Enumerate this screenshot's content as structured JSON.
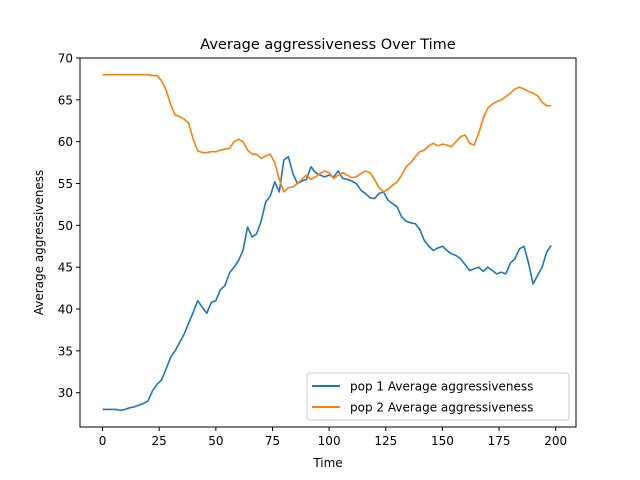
{
  "chart_data": {
    "type": "line",
    "title": "Average aggressiveness Over Time",
    "xlabel": "Time",
    "ylabel": "Average aggressiveness",
    "xlim": [
      -9.95,
      208.95
    ],
    "ylim": [
      25.9,
      70.0
    ],
    "xticks": [
      0,
      25,
      50,
      75,
      100,
      125,
      150,
      175,
      200
    ],
    "yticks": [
      30,
      35,
      40,
      45,
      50,
      55,
      60,
      65,
      70
    ],
    "grid": false,
    "legend_position": "lower-right",
    "series": [
      {
        "name": "pop 1 Average aggressiveness",
        "color": "#1f77b4",
        "x": [
          0,
          2,
          4,
          6,
          8,
          10,
          12,
          14,
          16,
          18,
          20,
          22,
          24,
          26,
          28,
          30,
          32,
          34,
          36,
          38,
          40,
          42,
          44,
          46,
          48,
          50,
          52,
          54,
          56,
          58,
          60,
          62,
          64,
          66,
          68,
          70,
          72,
          74,
          76,
          78,
          80,
          82,
          84,
          86,
          88,
          90,
          92,
          94,
          96,
          98,
          100,
          102,
          104,
          106,
          108,
          110,
          112,
          114,
          116,
          118,
          120,
          122,
          124,
          126,
          128,
          130,
          132,
          134,
          136,
          138,
          140,
          142,
          144,
          146,
          148,
          150,
          152,
          154,
          156,
          158,
          160,
          162,
          164,
          166,
          168,
          170,
          172,
          174,
          176,
          178,
          180,
          182,
          184,
          186,
          188,
          190,
          192,
          194,
          196,
          198
        ],
        "values": [
          28.0,
          28.0,
          28.0,
          28.0,
          27.9,
          28.0,
          28.2,
          28.3,
          28.5,
          28.7,
          29.0,
          30.2,
          31.0,
          31.5,
          32.8,
          34.2,
          35.0,
          36.0,
          37.0,
          38.3,
          39.6,
          41.0,
          40.2,
          39.5,
          40.8,
          41.0,
          42.3,
          42.8,
          44.3,
          45.0,
          45.8,
          47.0,
          49.8,
          48.6,
          49.0,
          50.5,
          52.8,
          53.5,
          55.2,
          54.0,
          57.8,
          58.2,
          56.2,
          55.0,
          55.3,
          55.5,
          57.0,
          56.3,
          56.0,
          55.8,
          56.0,
          55.8,
          56.5,
          55.6,
          55.5,
          55.3,
          55.0,
          54.2,
          53.8,
          53.3,
          53.2,
          53.8,
          54.0,
          53.0,
          52.6,
          52.2,
          51.0,
          50.5,
          50.3,
          50.2,
          49.5,
          48.2,
          47.5,
          47.0,
          47.3,
          47.5,
          47.0,
          46.6,
          46.4,
          46.0,
          45.3,
          44.6,
          44.8,
          45.0,
          44.5,
          45.0,
          44.6,
          44.2,
          44.4,
          44.2,
          45.5,
          46.0,
          47.2,
          47.5,
          45.5,
          43.0,
          44.0,
          45.0,
          46.8,
          47.6
        ]
      },
      {
        "name": "pop 2 Average aggressiveness",
        "color": "#ff7f0e",
        "x": [
          0,
          2,
          4,
          6,
          8,
          10,
          12,
          14,
          16,
          18,
          20,
          22,
          24,
          26,
          28,
          30,
          32,
          34,
          36,
          38,
          40,
          42,
          44,
          46,
          48,
          50,
          52,
          54,
          56,
          58,
          60,
          62,
          64,
          66,
          68,
          70,
          72,
          74,
          76,
          78,
          80,
          82,
          84,
          86,
          88,
          90,
          92,
          94,
          96,
          98,
          100,
          102,
          104,
          106,
          108,
          110,
          112,
          114,
          116,
          118,
          120,
          122,
          124,
          126,
          128,
          130,
          132,
          134,
          136,
          138,
          140,
          142,
          144,
          146,
          148,
          150,
          152,
          154,
          156,
          158,
          160,
          162,
          164,
          166,
          168,
          170,
          172,
          174,
          176,
          178,
          180,
          182,
          184,
          186,
          188,
          190,
          192,
          194,
          196,
          198
        ],
        "values": [
          68.0,
          68.0,
          68.0,
          68.0,
          68.0,
          68.0,
          68.0,
          68.0,
          68.0,
          68.0,
          68.0,
          67.9,
          67.9,
          67.3,
          66.2,
          64.5,
          63.2,
          63.0,
          62.7,
          62.2,
          60.3,
          58.9,
          58.7,
          58.7,
          58.8,
          58.8,
          59.0,
          59.1,
          59.2,
          60.0,
          60.3,
          60.0,
          59.0,
          58.5,
          58.5,
          58.0,
          58.3,
          58.5,
          57.5,
          55.5,
          54.0,
          54.5,
          54.6,
          55.0,
          55.5,
          56.0,
          55.5,
          55.8,
          56.2,
          56.5,
          56.3,
          55.6,
          56.0,
          56.3,
          56.0,
          55.7,
          55.8,
          56.2,
          56.5,
          56.3,
          55.5,
          54.5,
          54.0,
          54.3,
          54.8,
          55.2,
          56.0,
          57.0,
          57.5,
          58.2,
          58.8,
          59.0,
          59.5,
          59.8,
          59.5,
          59.7,
          59.6,
          59.4,
          60.0,
          60.6,
          60.8,
          59.8,
          59.6,
          61.0,
          62.8,
          64.0,
          64.5,
          64.8,
          65.0,
          65.4,
          65.8,
          66.3,
          66.5,
          66.3,
          66.0,
          65.8,
          65.5,
          64.7,
          64.3,
          64.3
        ]
      }
    ]
  }
}
